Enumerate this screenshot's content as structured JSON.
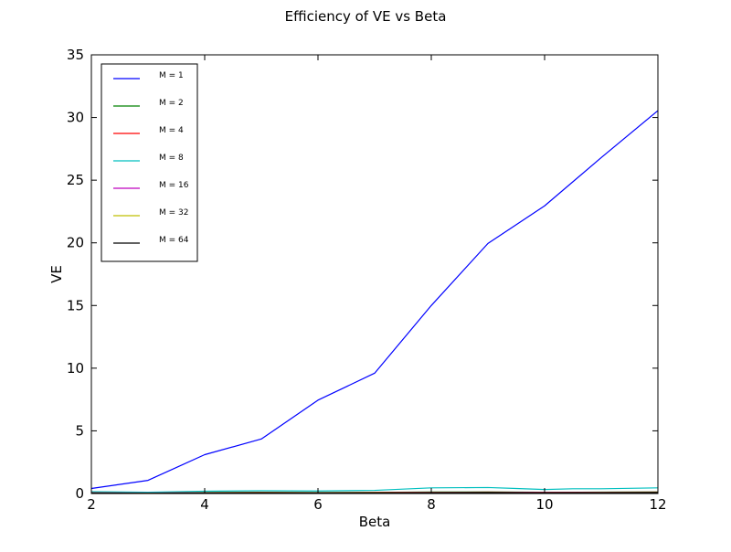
{
  "chart_data": {
    "type": "line",
    "title": "Efficiency of VE vs Beta",
    "xlabel": "Beta",
    "ylabel": "VE",
    "xlim": [
      2,
      12
    ],
    "ylim": [
      0,
      35
    ],
    "xticks": [
      2,
      4,
      6,
      8,
      10,
      12
    ],
    "yticks": [
      0,
      5,
      10,
      15,
      20,
      25,
      30,
      35
    ],
    "grid": false,
    "legend_position": "top-left",
    "series": [
      {
        "name": "M = 1",
        "color": "#0000ff",
        "x": [
          2,
          3,
          4,
          5,
          6,
          7,
          8,
          9,
          10,
          11,
          12
        ],
        "y": [
          0.4,
          1.05,
          3.1,
          4.35,
          7.45,
          9.6,
          15.0,
          19.95,
          22.95,
          26.8,
          30.55
        ]
      },
      {
        "name": "M = 2",
        "color": "#008000",
        "x": [
          2,
          3,
          4,
          5,
          6,
          7,
          8,
          9,
          10,
          11,
          12
        ],
        "y": [
          0.08,
          0.06,
          0.08,
          0.09,
          0.08,
          0.09,
          0.12,
          0.12,
          0.1,
          0.11,
          0.12
        ]
      },
      {
        "name": "M = 4",
        "color": "#ff0000",
        "x": [
          2,
          3,
          4,
          5,
          6,
          7,
          8,
          9,
          10,
          11,
          12
        ],
        "y": [
          0.06,
          0.05,
          0.07,
          0.08,
          0.07,
          0.08,
          0.1,
          0.11,
          0.09,
          0.1,
          0.11
        ]
      },
      {
        "name": "M = 8",
        "color": "#00bfbf",
        "x": [
          2,
          3,
          4,
          5,
          6,
          7,
          7.5,
          8,
          9,
          9.5,
          10,
          10.5,
          11,
          12
        ],
        "y": [
          0.15,
          0.1,
          0.18,
          0.22,
          0.2,
          0.25,
          0.35,
          0.45,
          0.48,
          0.4,
          0.32,
          0.38,
          0.38,
          0.45
        ]
      },
      {
        "name": "M = 16",
        "color": "#bf00bf",
        "x": [
          2,
          3,
          4,
          5,
          6,
          7,
          8,
          9,
          10,
          11,
          12
        ],
        "y": [
          0.05,
          0.04,
          0.06,
          0.07,
          0.06,
          0.07,
          0.09,
          0.1,
          0.08,
          0.09,
          0.1
        ]
      },
      {
        "name": "M = 32",
        "color": "#bfbf00",
        "x": [
          2,
          3,
          4,
          5,
          6,
          7,
          8,
          9,
          10,
          11,
          12
        ],
        "y": [
          0.04,
          0.03,
          0.05,
          0.06,
          0.05,
          0.06,
          0.08,
          0.09,
          0.07,
          0.08,
          0.09
        ]
      },
      {
        "name": "M = 64",
        "color": "#000000",
        "x": [
          2,
          3,
          4,
          5,
          6,
          7,
          8,
          9,
          10,
          11,
          12
        ],
        "y": [
          0.03,
          0.02,
          0.04,
          0.05,
          0.04,
          0.05,
          0.07,
          0.08,
          0.06,
          0.07,
          0.08
        ]
      }
    ]
  }
}
